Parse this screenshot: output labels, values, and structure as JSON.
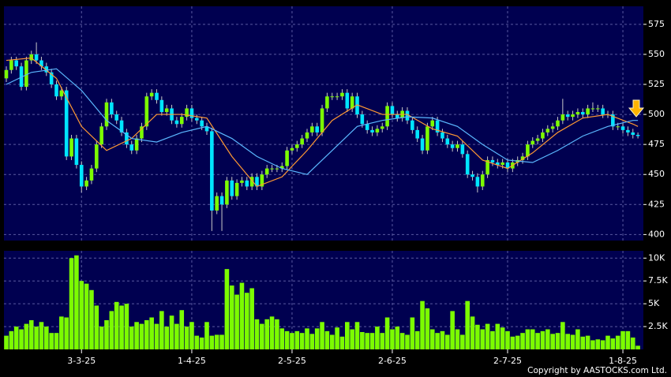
{
  "chart_data": [
    {
      "type": "candlestick",
      "open": [
        530,
        537,
        545,
        540,
        523,
        545,
        550,
        545,
        540,
        535,
        525,
        515,
        520,
        465,
        480,
        458,
        440,
        445,
        455,
        475,
        490,
        510,
        500,
        495,
        485,
        475,
        470,
        480,
        490,
        515,
        518,
        512,
        502,
        505,
        495,
        492,
        498,
        505,
        497,
        495,
        490,
        486,
        420,
        432,
        425,
        445,
        432,
        443,
        445,
        440,
        448,
        440,
        450,
        455,
        455,
        455,
        457,
        470,
        472,
        475,
        480,
        485,
        490,
        485,
        505,
        515,
        515,
        515,
        518,
        505,
        515,
        500,
        492,
        487,
        485,
        488,
        490,
        507,
        500,
        497,
        503,
        495,
        487,
        480,
        470,
        490,
        495,
        485,
        480,
        475,
        472,
        475,
        467,
        450,
        448,
        440,
        450,
        462,
        460,
        458,
        460,
        455,
        460,
        462,
        465,
        475,
        478,
        480,
        485,
        488,
        490,
        495,
        500,
        498,
        500,
        502,
        500,
        505,
        505,
        505,
        500,
        500,
        490,
        490,
        487,
        485,
        483
      ],
      "high": [
        540,
        548,
        548,
        543,
        548,
        553,
        560,
        548,
        543,
        538,
        528,
        523,
        523,
        483,
        483,
        461,
        448,
        458,
        478,
        493,
        513,
        513,
        503,
        498,
        488,
        478,
        483,
        493,
        518,
        521,
        521,
        515,
        508,
        508,
        498,
        501,
        508,
        508,
        500,
        498,
        493,
        489,
        435,
        435,
        448,
        448,
        446,
        448,
        448,
        451,
        451,
        453,
        458,
        458,
        458,
        460,
        473,
        475,
        478,
        483,
        488,
        493,
        493,
        508,
        518,
        518,
        518,
        521,
        521,
        518,
        518,
        503,
        495,
        490,
        491,
        493,
        510,
        510,
        503,
        506,
        506,
        498,
        490,
        483,
        493,
        498,
        498,
        488,
        483,
        478,
        478,
        478,
        470,
        453,
        451,
        453,
        465,
        465,
        463,
        463,
        463,
        463,
        465,
        468,
        478,
        481,
        483,
        488,
        491,
        493,
        498,
        513,
        503,
        503,
        505,
        505,
        508,
        510,
        508,
        508,
        503,
        503,
        493,
        493,
        490,
        488,
        485
      ],
      "low": [
        527,
        534,
        537,
        520,
        520,
        542,
        542,
        537,
        532,
        522,
        512,
        512,
        462,
        462,
        455,
        435,
        437,
        442,
        452,
        472,
        487,
        497,
        492,
        482,
        472,
        467,
        467,
        477,
        487,
        512,
        509,
        499,
        499,
        492,
        489,
        489,
        495,
        494,
        492,
        487,
        483,
        403,
        417,
        403,
        422,
        429,
        429,
        440,
        437,
        437,
        437,
        437,
        447,
        452,
        452,
        452,
        454,
        467,
        469,
        472,
        477,
        482,
        482,
        482,
        502,
        512,
        512,
        512,
        502,
        502,
        497,
        489,
        484,
        482,
        482,
        485,
        487,
        497,
        494,
        494,
        492,
        484,
        477,
        467,
        467,
        487,
        482,
        477,
        472,
        469,
        469,
        464,
        447,
        445,
        435,
        437,
        447,
        457,
        455,
        455,
        452,
        452,
        457,
        459,
        462,
        472,
        475,
        477,
        482,
        485,
        487,
        492,
        495,
        495,
        497,
        497,
        497,
        502,
        502,
        497,
        497,
        487,
        487,
        484,
        482,
        480,
        480
      ],
      "close": [
        537,
        545,
        540,
        523,
        545,
        550,
        545,
        540,
        535,
        525,
        515,
        520,
        465,
        480,
        458,
        440,
        445,
        455,
        475,
        490,
        510,
        500,
        495,
        485,
        475,
        470,
        480,
        490,
        515,
        518,
        512,
        502,
        505,
        495,
        492,
        498,
        505,
        497,
        495,
        490,
        486,
        420,
        432,
        425,
        445,
        432,
        443,
        445,
        440,
        448,
        440,
        450,
        455,
        455,
        455,
        457,
        470,
        472,
        475,
        480,
        485,
        490,
        485,
        505,
        515,
        515,
        515,
        518,
        505,
        515,
        500,
        492,
        487,
        485,
        488,
        490,
        507,
        500,
        497,
        503,
        495,
        487,
        480,
        470,
        490,
        495,
        485,
        480,
        475,
        472,
        475,
        467,
        450,
        448,
        440,
        450,
        462,
        460,
        458,
        460,
        455,
        460,
        462,
        465,
        475,
        478,
        480,
        485,
        488,
        490,
        495,
        500,
        498,
        500,
        502,
        500,
        505,
        505,
        505,
        500,
        500,
        490,
        490,
        487,
        485,
        483,
        482
      ],
      "up_color": "#7cfc00",
      "down_color": "#00e5ff",
      "ma_short": {
        "color": "#ff9933",
        "x": [
          0,
          5,
          10,
          15,
          20,
          25,
          30,
          35,
          40,
          45,
          50,
          55,
          60,
          65,
          70,
          75,
          80,
          85,
          90,
          95,
          100,
          105,
          110,
          115,
          120,
          125,
          126
        ],
        "values": [
          545,
          547,
          530,
          490,
          470,
          480,
          500,
          500,
          497,
          465,
          440,
          448,
          470,
          495,
          508,
          500,
          500,
          488,
          482,
          462,
          455,
          468,
          485,
          497,
          500,
          492,
          490
        ]
      },
      "ma_long": {
        "color": "#5bb8ff",
        "x": [
          0,
          5,
          10,
          15,
          20,
          25,
          30,
          35,
          40,
          45,
          50,
          55,
          60,
          65,
          70,
          75,
          80,
          85,
          90,
          95,
          100,
          105,
          110,
          115,
          120,
          125,
          126
        ],
        "values": [
          525,
          535,
          538,
          520,
          495,
          480,
          477,
          485,
          490,
          480,
          465,
          455,
          450,
          470,
          490,
          495,
          498,
          497,
          490,
          475,
          462,
          460,
          470,
          482,
          490,
          495,
          495
        ]
      },
      "ylim": [
        395,
        590
      ],
      "yticks": [
        400,
        425,
        450,
        475,
        500,
        525,
        550,
        575
      ],
      "grid": true
    },
    {
      "type": "bar",
      "categories": [
        null,
        null,
        null,
        null,
        null,
        null,
        null,
        null,
        null,
        null,
        null,
        null,
        null,
        null,
        null,
        "3-3-25",
        null,
        null,
        null,
        null,
        null,
        null,
        null,
        null,
        null,
        null,
        null,
        null,
        null,
        null,
        null,
        null,
        null,
        null,
        null,
        null,
        null,
        "1-4-25",
        null,
        null,
        null,
        null,
        null,
        null,
        null,
        null,
        null,
        null,
        null,
        null,
        null,
        null,
        null,
        null,
        null,
        null,
        null,
        "2-5-25",
        null,
        null,
        null,
        null,
        null,
        null,
        null,
        null,
        null,
        null,
        null,
        null,
        null,
        null,
        null,
        null,
        null,
        null,
        null,
        "2-6-25",
        null,
        null,
        null,
        null,
        null,
        null,
        null,
        null,
        null,
        null,
        null,
        null,
        null,
        null,
        null,
        null,
        null,
        null,
        null,
        null,
        null,
        null,
        "2-7-25",
        null,
        null,
        null,
        null,
        null,
        null,
        null,
        null,
        null,
        null,
        null,
        null,
        null,
        null,
        null,
        null,
        null,
        null,
        null,
        null,
        null,
        null,
        "1-8-25",
        null,
        null,
        null
      ],
      "values": [
        1500,
        2000,
        2500,
        2200,
        2800,
        3200,
        2500,
        3000,
        2500,
        1800,
        1800,
        3600,
        3500,
        10000,
        10300,
        7500,
        7200,
        6500,
        4800,
        2500,
        3200,
        4200,
        5200,
        4800,
        5000,
        2500,
        3000,
        2800,
        3200,
        3500,
        2800,
        4200,
        2500,
        3700,
        2800,
        4300,
        2500,
        3000,
        1500,
        1300,
        3000,
        1500,
        1600,
        1600,
        8800,
        7000,
        6000,
        7300,
        6200,
        6700,
        3300,
        2800,
        3300,
        3600,
        3300,
        2300,
        2000,
        1800,
        2000,
        1800,
        2300,
        1700,
        2300,
        3000,
        2000,
        1600,
        2400,
        1400,
        3000,
        2200,
        3000,
        1900,
        1800,
        1800,
        2500,
        1800,
        3500,
        2200,
        2500,
        1800,
        1600,
        3500,
        2000,
        5300,
        4500,
        2200,
        1800,
        2000,
        1600,
        4200,
        2200,
        1600,
        5300,
        3600,
        2700,
        2200,
        2800,
        2000,
        2800,
        2400,
        2000,
        1400,
        1500,
        1800,
        2200,
        2200,
        1800,
        2000,
        2200,
        1700,
        1800,
        3000,
        1700,
        1600,
        2200,
        1400,
        1500,
        1000,
        1100,
        1000,
        1500,
        1200,
        1500,
        2000,
        2000,
        1300,
        400
      ],
      "color": "#7cfc00",
      "ylim": [
        0,
        10800
      ],
      "yticks": [
        {
          "value": 2500,
          "label": "2.5K"
        },
        {
          "value": 5000,
          "label": "5K"
        },
        {
          "value": 7500,
          "label": "7.5K"
        },
        {
          "value": 10000,
          "label": "10K"
        }
      ],
      "grid": true
    }
  ],
  "footer": "Copyright by AASTOCKS.com Ltd."
}
